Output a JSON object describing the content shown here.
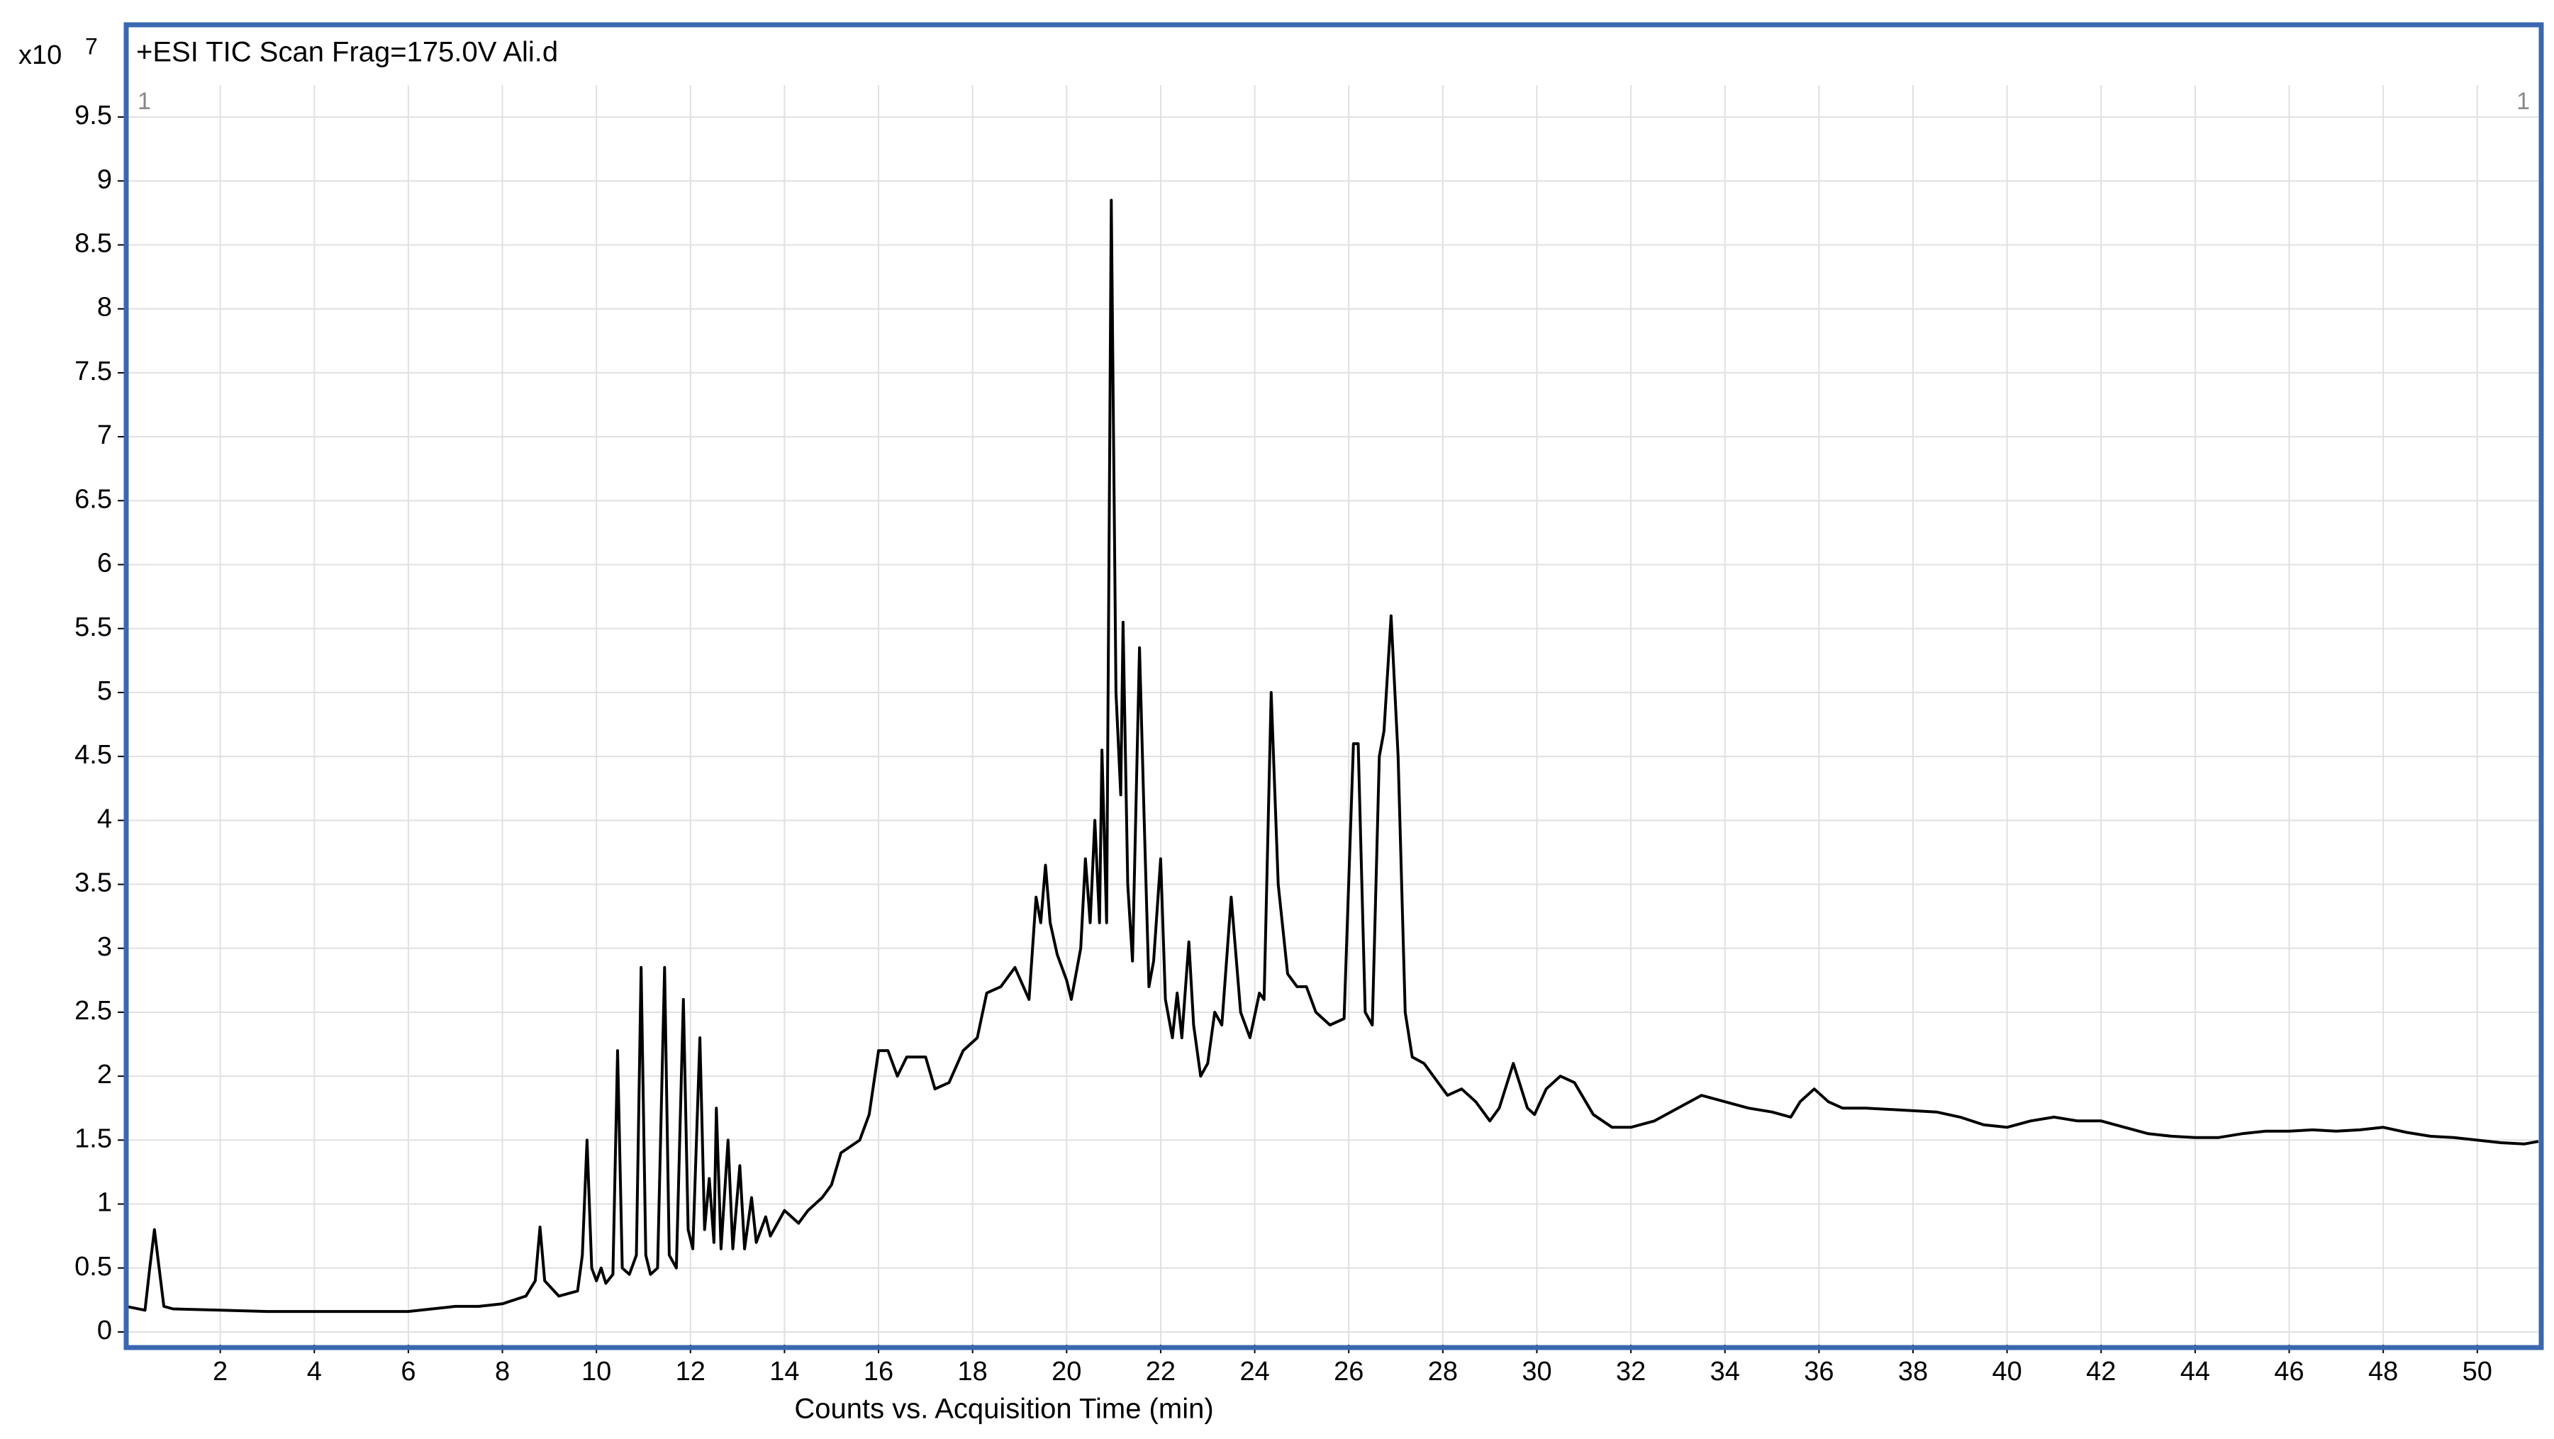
{
  "chart_data": {
    "type": "line",
    "title": "+ESI TIC Scan Frag=175.0V Ali.d",
    "x_label": "Counts vs. Acquisition Time (min)",
    "y_scale_label": {
      "base": "x10",
      "exponent": "7"
    },
    "corner_labels": [
      "1",
      "1"
    ],
    "color": "#000000",
    "frame_color": "#3a68b0",
    "grid": true,
    "xlim": [
      0,
      51.3
    ],
    "ylim": [
      -0.1,
      9.75
    ],
    "xticks": [
      2,
      4,
      6,
      8,
      10,
      12,
      14,
      16,
      18,
      20,
      22,
      24,
      26,
      28,
      30,
      32,
      34,
      36,
      38,
      40,
      42,
      44,
      46,
      48,
      50
    ],
    "yticks": [
      0,
      0.5,
      1,
      1.5,
      2,
      2.5,
      3,
      3.5,
      4,
      4.5,
      5,
      5.5,
      6,
      6.5,
      7,
      7.5,
      8,
      8.5,
      9,
      9.5
    ],
    "x": [
      0,
      0.4,
      0.5,
      0.6,
      0.7,
      0.8,
      1,
      2,
      3,
      4,
      5,
      6,
      6.5,
      7,
      7.5,
      8,
      8.5,
      8.7,
      8.8,
      8.9,
      9.2,
      9.6,
      9.7,
      9.8,
      9.9,
      10,
      10.1,
      10.2,
      10.35,
      10.45,
      10.55,
      10.7,
      10.85,
      10.95,
      11.05,
      11.15,
      11.3,
      11.45,
      11.55,
      11.7,
      11.85,
      11.95,
      12.05,
      12.2,
      12.3,
      12.4,
      12.5,
      12.55,
      12.65,
      12.8,
      12.9,
      13.05,
      13.15,
      13.3,
      13.4,
      13.6,
      13.7,
      14,
      14.3,
      14.5,
      14.8,
      15,
      15.2,
      15.4,
      15.6,
      15.8,
      16,
      16.2,
      16.4,
      16.6,
      17,
      17.2,
      17.5,
      17.8,
      18.1,
      18.3,
      18.6,
      18.9,
      19.2,
      19.35,
      19.45,
      19.55,
      19.65,
      19.8,
      20,
      20.1,
      20.3,
      20.4,
      20.5,
      20.6,
      20.7,
      20.75,
      20.85,
      20.95,
      21.05,
      21.15,
      21.2,
      21.3,
      21.4,
      21.55,
      21.65,
      21.75,
      21.85,
      22,
      22.1,
      22.25,
      22.35,
      22.45,
      22.6,
      22.7,
      22.85,
      23,
      23.15,
      23.3,
      23.5,
      23.7,
      23.9,
      24.1,
      24.2,
      24.35,
      24.5,
      24.7,
      24.9,
      25.1,
      25.3,
      25.6,
      25.9,
      26.1,
      26.2,
      26.35,
      26.5,
      26.65,
      26.75,
      26.9,
      27.05,
      27.2,
      27.35,
      27.6,
      27.9,
      28.1,
      28.4,
      28.7,
      29,
      29.2,
      29.5,
      29.8,
      29.95,
      30.2,
      30.5,
      30.8,
      31.2,
      31.6,
      32,
      32.5,
      33,
      33.5,
      34,
      34.5,
      35,
      35.4,
      35.6,
      35.9,
      36.2,
      36.5,
      37,
      38,
      38.5,
      39,
      39.5,
      40,
      40.5,
      41,
      41.5,
      42,
      42.5,
      43,
      43.5,
      44,
      44.5,
      45,
      45.5,
      46,
      46.5,
      47,
      47.5,
      48,
      48.5,
      49,
      49.5,
      50,
      50.5,
      51,
      51.3
    ],
    "values": [
      0.2,
      0.17,
      0.5,
      0.8,
      0.5,
      0.2,
      0.18,
      0.17,
      0.16,
      0.16,
      0.16,
      0.16,
      0.18,
      0.2,
      0.2,
      0.22,
      0.28,
      0.4,
      0.82,
      0.4,
      0.28,
      0.32,
      0.6,
      1.5,
      0.5,
      0.4,
      0.5,
      0.38,
      0.45,
      2.2,
      0.5,
      0.45,
      0.6,
      2.85,
      0.6,
      0.45,
      0.5,
      2.85,
      0.6,
      0.5,
      2.6,
      0.8,
      0.65,
      2.3,
      0.8,
      1.2,
      0.7,
      1.75,
      0.65,
      1.5,
      0.65,
      1.3,
      0.65,
      1.05,
      0.7,
      0.9,
      0.75,
      0.95,
      0.85,
      0.95,
      1.05,
      1.15,
      1.4,
      1.45,
      1.5,
      1.7,
      2.2,
      2.2,
      2.0,
      2.15,
      2.15,
      1.9,
      1.95,
      2.2,
      2.3,
      2.65,
      2.7,
      2.85,
      2.6,
      3.4,
      3.2,
      3.65,
      3.2,
      2.95,
      2.75,
      2.6,
      3.0,
      3.7,
      3.2,
      4.0,
      3.2,
      4.55,
      3.2,
      8.85,
      5.0,
      4.2,
      5.55,
      3.5,
      2.9,
      5.35,
      4.0,
      2.7,
      2.9,
      3.7,
      2.6,
      2.3,
      2.65,
      2.3,
      3.05,
      2.4,
      2.0,
      2.1,
      2.5,
      2.4,
      3.4,
      2.5,
      2.3,
      2.65,
      2.6,
      5.0,
      3.5,
      2.8,
      2.7,
      2.7,
      2.5,
      2.4,
      2.45,
      4.6,
      4.6,
      2.5,
      2.4,
      4.5,
      4.7,
      5.6,
      4.5,
      2.5,
      2.15,
      2.1,
      1.95,
      1.85,
      1.9,
      1.8,
      1.65,
      1.75,
      2.1,
      1.75,
      1.7,
      1.9,
      2.0,
      1.95,
      1.7,
      1.6,
      1.6,
      1.65,
      1.75,
      1.85,
      1.8,
      1.75,
      1.72,
      1.68,
      1.8,
      1.9,
      1.8,
      1.75,
      1.75,
      1.73,
      1.72,
      1.68,
      1.62,
      1.6,
      1.65,
      1.68,
      1.65,
      1.65,
      1.6,
      1.55,
      1.53,
      1.52,
      1.52,
      1.55,
      1.57,
      1.57,
      1.58,
      1.57,
      1.58,
      1.6,
      1.56,
      1.53,
      1.52,
      1.5,
      1.48,
      1.47,
      1.49
    ]
  }
}
